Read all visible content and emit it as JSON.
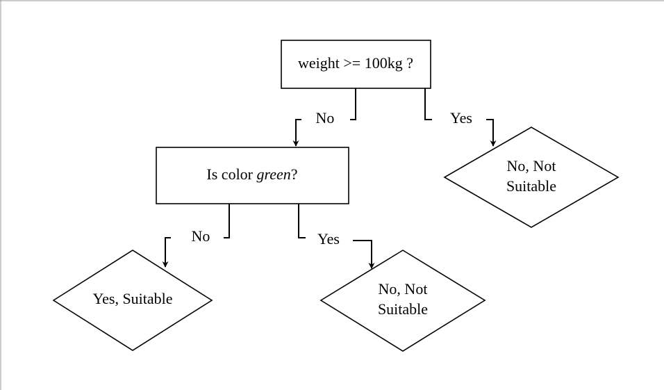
{
  "nodes": [
    {
      "label": "weight >= 100kg ?"
    },
    {
      "label_parts": [
        "Is color ",
        "green",
        "?"
      ]
    },
    {
      "lines": [
        "No, Not",
        "Suitable"
      ]
    },
    {
      "lines": [
        "Yes, Suitable"
      ]
    },
    {
      "lines": [
        "No, Not",
        "Suitable"
      ]
    }
  ],
  "edges": [
    {
      "label": "No"
    },
    {
      "label": "Yes"
    },
    {
      "label": "No"
    },
    {
      "label": "Yes"
    }
  ]
}
